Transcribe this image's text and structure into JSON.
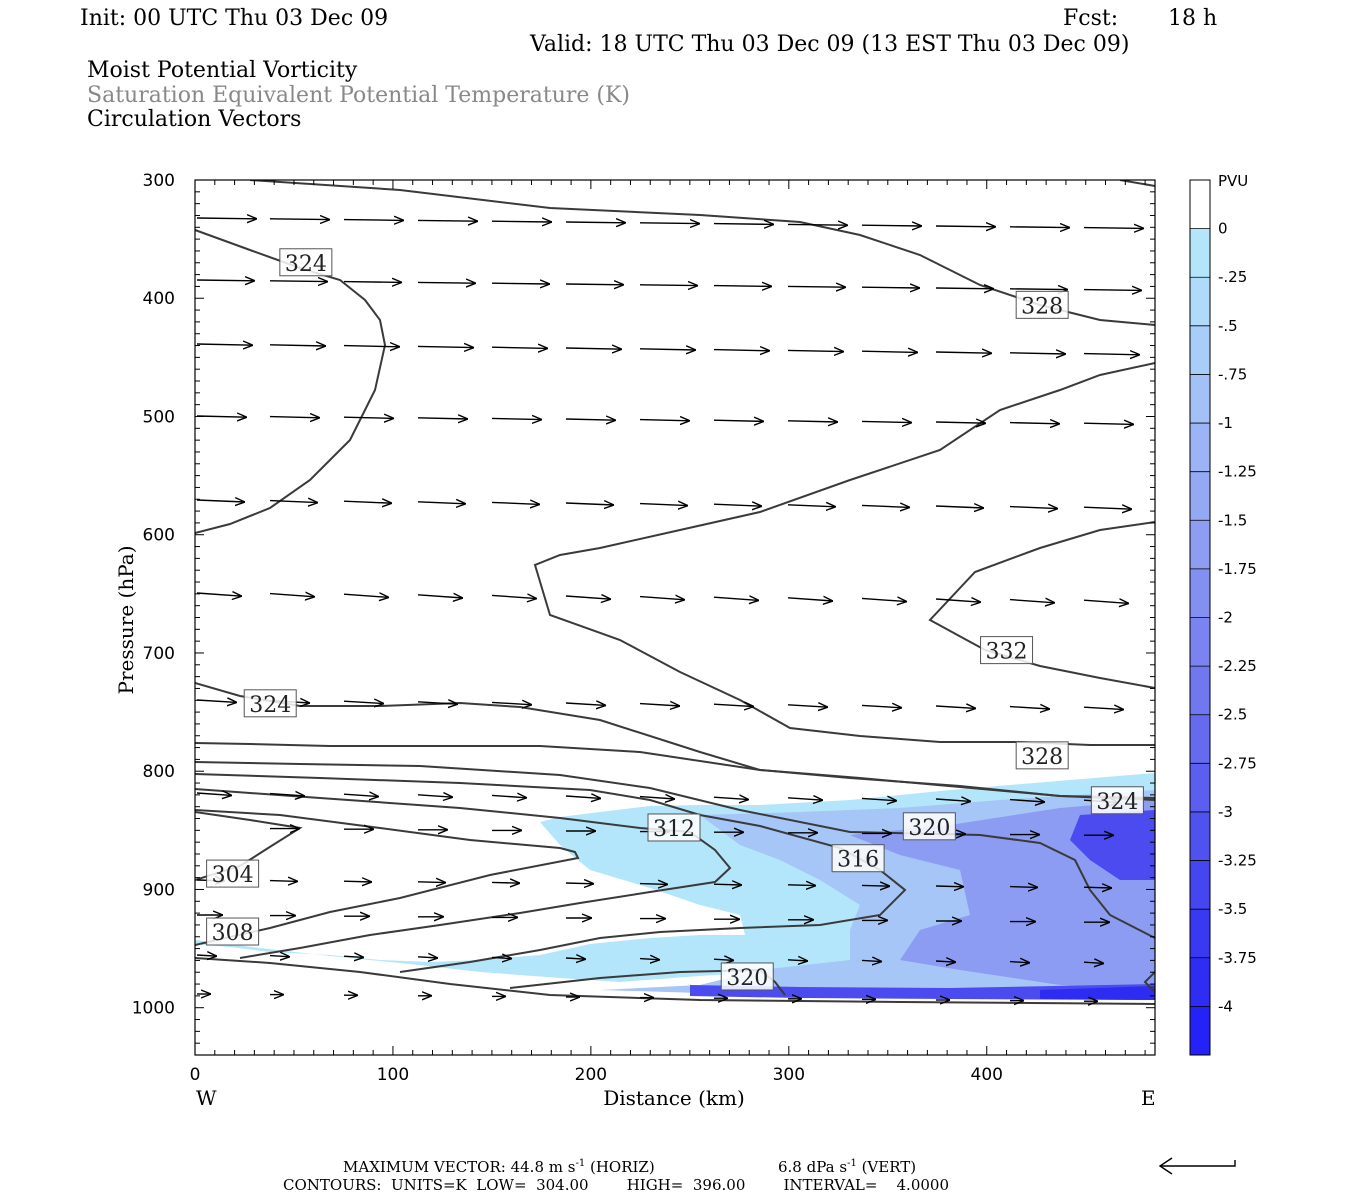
{
  "header": {
    "init": "Init: 00 UTC Thu 03 Dec 09",
    "fcst_label": "Fcst:",
    "fcst_value": "18 h",
    "valid": "Valid: 18 UTC Thu 03 Dec 09 (13 EST Thu 03 Dec 09)",
    "field1": "Moist Potential Vorticity",
    "field2": "Saturation Equivalent Potential Temperature (K)",
    "field3": "Circulation Vectors"
  },
  "colors": {
    "contour": "#3a3a3a",
    "shade_light": "#b4e6fb",
    "shade_mid": "#a5c6f6",
    "shade_dark": "#8c9cf2",
    "shade_deep": "#4b4bf0",
    "header_grey": "#888888"
  },
  "chart_data": {
    "type": "cross-section",
    "xlabel": "Distance (km)",
    "ylabel": "Pressure (hPa)",
    "x_ticks": [
      "0",
      "100",
      "200",
      "300",
      "400"
    ],
    "y_ticks": [
      "300",
      "400",
      "500",
      "600",
      "700",
      "800",
      "900",
      "1000"
    ],
    "xlim": [
      0,
      485
    ],
    "ylim": [
      1040,
      300
    ],
    "y_scale": "inverted-linear",
    "west_label": "W",
    "east_label": "E",
    "colorbar": {
      "unit": "PVU",
      "labels": [
        "0",
        "-.25",
        "-.5",
        "-.75",
        "-1",
        "-1.25",
        "-1.5",
        "-1.75",
        "-2",
        "-2.25",
        "-2.5",
        "-2.75",
        "-3",
        "-3.25",
        "-3.5",
        "-3.75",
        "-4"
      ],
      "colors": [
        "#ffffff",
        "#b4e6fb",
        "#b0dafa",
        "#a8cdf8",
        "#a3c1f6",
        "#9cb4f5",
        "#95a8f3",
        "#8e9cf2",
        "#8490f1",
        "#7a83f0",
        "#7077ef",
        "#656aef",
        "#5b5eef",
        "#5052ef",
        "#4546f0",
        "#3a39f2",
        "#2f2df4",
        "#2422f6"
      ]
    },
    "contour_labels": [
      {
        "value": "324",
        "x": 56,
        "p": 370
      },
      {
        "value": "328",
        "x": 428,
        "p": 406
      },
      {
        "value": "332",
        "x": 410,
        "p": 698
      },
      {
        "value": "324",
        "x": 38,
        "p": 743
      },
      {
        "value": "328",
        "x": 428,
        "p": 787
      },
      {
        "value": "324",
        "x": 466,
        "p": 825
      },
      {
        "value": "312",
        "x": 242,
        "p": 848
      },
      {
        "value": "320",
        "x": 371,
        "p": 847
      },
      {
        "value": "316",
        "x": 335,
        "p": 874
      },
      {
        "value": "304",
        "x": 19,
        "p": 887
      },
      {
        "value": "308",
        "x": 19,
        "p": 936
      },
      {
        "value": "320",
        "x": 279,
        "p": 974
      }
    ],
    "contour_levels": {
      "units": "K",
      "low": 304,
      "high": 396,
      "interval": 4
    },
    "vectors_scale": {
      "horizontal": "44.8 m s-1",
      "vertical": "6.8 dPa s-1"
    }
  },
  "footer": {
    "line1_a": "MAXIMUM VECTOR:  44.8 m s",
    "line1_a_sup": "-1",
    "line1_b": " (HORIZ)",
    "line1_c": "6.8 dPa s",
    "line1_c_sup": "-1",
    "line1_d": " (VERT)",
    "line2": "CONTOURS:  UNITS=K  LOW=  304.00        HIGH=  396.00        INTERVAL=    4.0000"
  }
}
